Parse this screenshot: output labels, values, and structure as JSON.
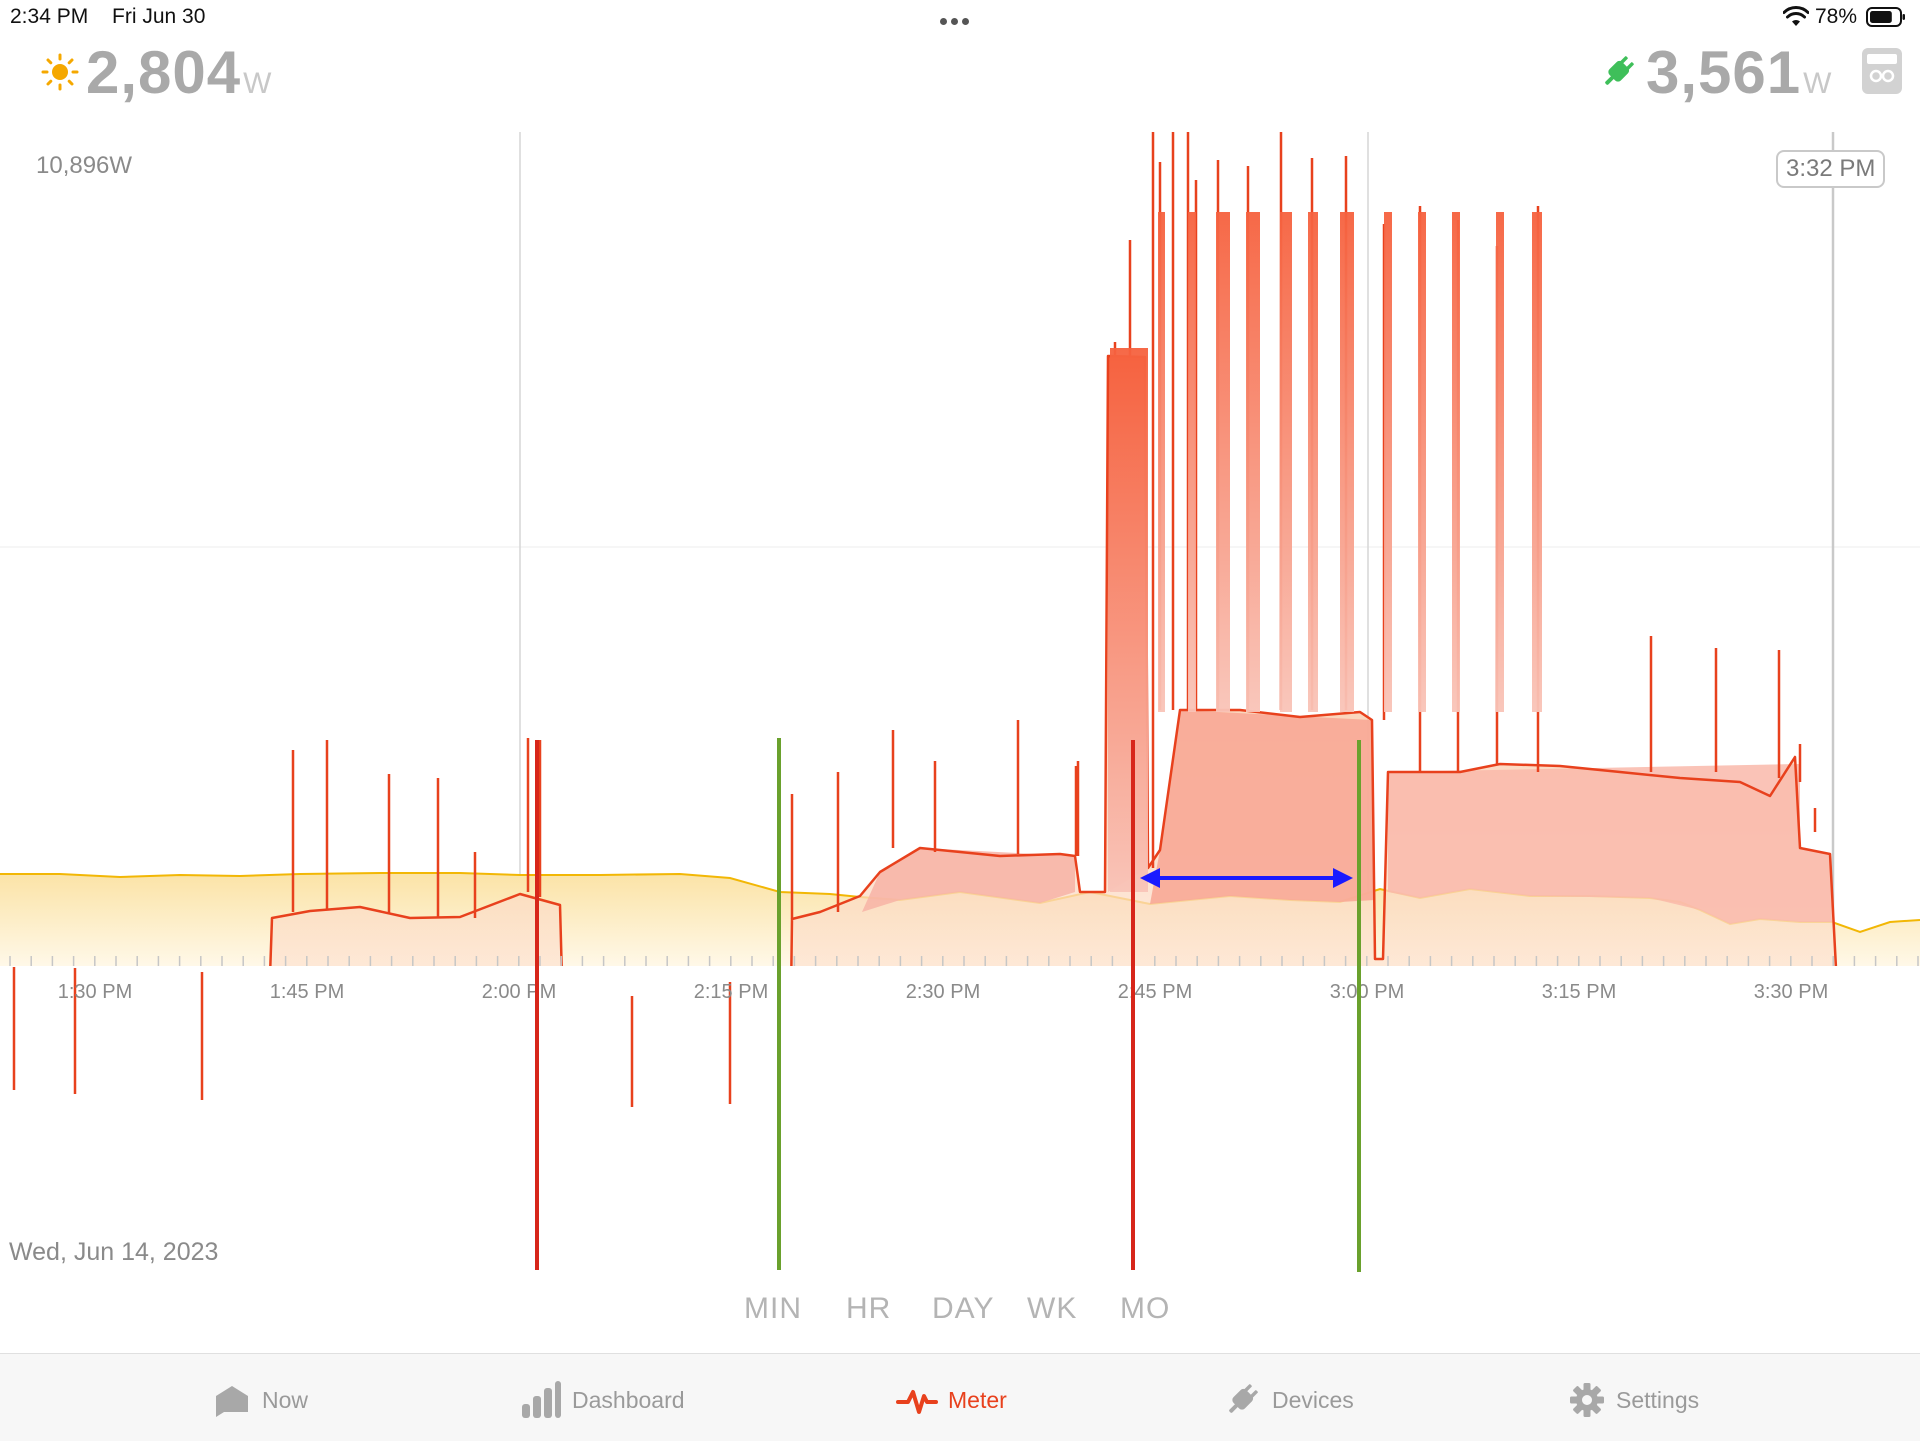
{
  "status_bar": {
    "time": "2:34 PM",
    "date": "Fri Jun 30",
    "battery_percent": "78%",
    "battery_level": 0.78,
    "icons": [
      "more-dots-icon",
      "wifi-icon",
      "battery-icon"
    ]
  },
  "header": {
    "solar": {
      "icon": "sun-icon",
      "value": "2,804",
      "unit": "W"
    },
    "usage": {
      "icon": "plug-icon",
      "value": "3,561",
      "unit": "W"
    },
    "meter_icon": "meter-icon"
  },
  "chart": {
    "max_label": "10,896W",
    "cursor_time": "3:32 PM",
    "date_label": "Wed, Jun 14, 2023",
    "x_tick_labels": [
      "1:30 PM",
      "1:45 PM",
      "2:00 PM",
      "2:15 PM",
      "2:30 PM",
      "2:45 PM",
      "3:00 PM",
      "3:15 PM",
      "3:30 PM"
    ],
    "colors": {
      "consumption": "#e8411d",
      "solar": "#f2b705",
      "annotation_red": "#d7261a",
      "annotation_green": "#6aa12d",
      "annotation_arrow": "#1a1aff"
    }
  },
  "range_selector": {
    "options": [
      "MIN",
      "HR",
      "DAY",
      "WK",
      "MO"
    ],
    "selected": "MIN"
  },
  "tab_bar": {
    "tabs": [
      {
        "label": "Now",
        "icon": "home-speech-icon"
      },
      {
        "label": "Dashboard",
        "icon": "bar-chart-icon"
      },
      {
        "label": "Meter",
        "icon": "pulse-icon",
        "active": true
      },
      {
        "label": "Devices",
        "icon": "plug-icon"
      },
      {
        "label": "Settings",
        "icon": "gear-icon"
      }
    ]
  }
}
